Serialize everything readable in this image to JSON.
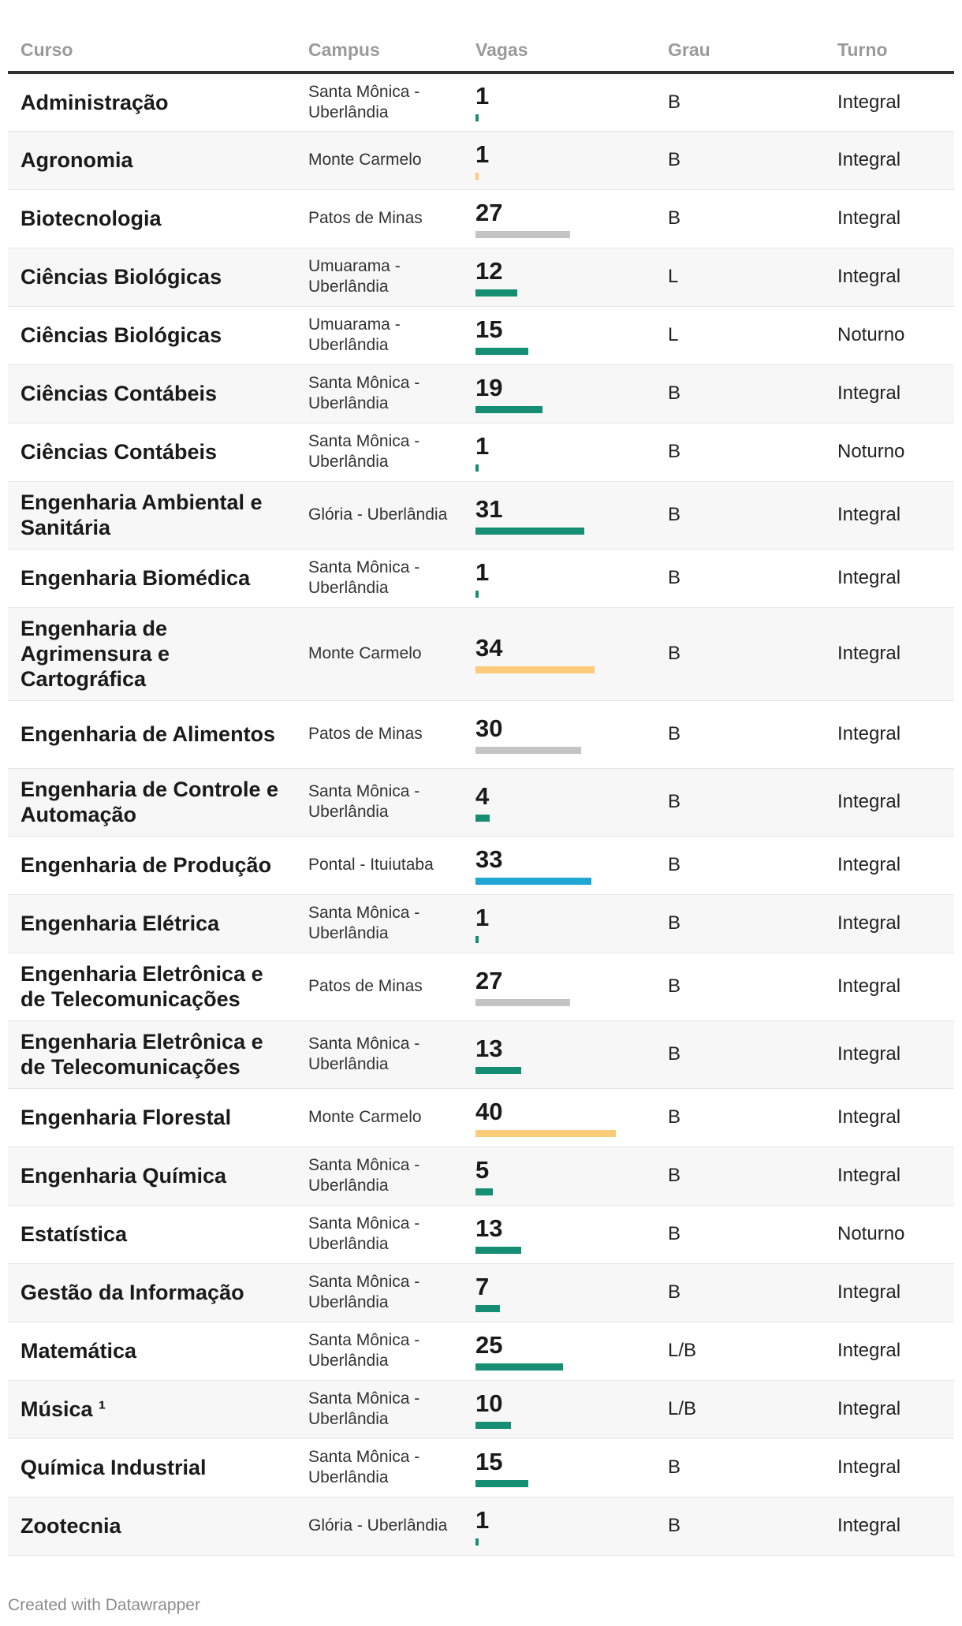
{
  "chart_data": {
    "type": "table",
    "columns": [
      "Curso",
      "Campus",
      "Vagas",
      "Grau",
      "Turno"
    ],
    "bar_max": 40,
    "colors": {
      "green": "#168e73",
      "yellow": "#fbcb7a",
      "gray": "#c4c4c4",
      "blue": "#1fa6d3"
    },
    "rows": [
      {
        "curso": "Administração",
        "campus": "Santa Mônica - Uberlândia",
        "vagas": 1,
        "grau": "B",
        "turno": "Integral",
        "color": "green"
      },
      {
        "curso": "Agronomia",
        "campus": "Monte Carmelo",
        "vagas": 1,
        "grau": "B",
        "turno": "Integral",
        "color": "yellow"
      },
      {
        "curso": "Biotecnologia",
        "campus": "Patos de Minas",
        "vagas": 27,
        "grau": "B",
        "turno": "Integral",
        "color": "gray"
      },
      {
        "curso": "Ciências Biológicas",
        "campus": "Umuarama - Uberlândia",
        "vagas": 12,
        "grau": "L",
        "turno": "Integral",
        "color": "green"
      },
      {
        "curso": "Ciências Biológicas",
        "campus": "Umuarama - Uberlândia",
        "vagas": 15,
        "grau": "L",
        "turno": "Noturno",
        "color": "green"
      },
      {
        "curso": "Ciências Contábeis",
        "campus": "Santa Mônica - Uberlândia",
        "vagas": 19,
        "grau": "B",
        "turno": "Integral",
        "color": "green"
      },
      {
        "curso": "Ciências Contábeis",
        "campus": "Santa Mônica - Uberlândia",
        "vagas": 1,
        "grau": "B",
        "turno": "Noturno",
        "color": "green"
      },
      {
        "curso": "Engenharia Ambiental e Sanitária",
        "campus": "Glória - Uberlândia",
        "vagas": 31,
        "grau": "B",
        "turno": "Integral",
        "color": "green"
      },
      {
        "curso": "Engenharia Biomédica",
        "campus": "Santa Mônica - Uberlândia",
        "vagas": 1,
        "grau": "B",
        "turno": "Integral",
        "color": "green"
      },
      {
        "curso": "Engenharia de Agrimensura e Cartográfica",
        "campus": "Monte Carmelo",
        "vagas": 34,
        "grau": "B",
        "turno": "Integral",
        "color": "yellow"
      },
      {
        "curso": "Engenharia de Alimentos",
        "campus": "Patos de Minas",
        "vagas": 30,
        "grau": "B",
        "turno": "Integral",
        "color": "gray"
      },
      {
        "curso": "Engenharia de Controle e Automação",
        "campus": "Santa Mônica - Uberlândia",
        "vagas": 4,
        "grau": "B",
        "turno": "Integral",
        "color": "green"
      },
      {
        "curso": "Engenharia de Produção",
        "campus": "Pontal - Ituiutaba",
        "vagas": 33,
        "grau": "B",
        "turno": "Integral",
        "color": "blue"
      },
      {
        "curso": "Engenharia Elétrica",
        "campus": "Santa Mônica - Uberlândia",
        "vagas": 1,
        "grau": "B",
        "turno": "Integral",
        "color": "green"
      },
      {
        "curso": "Engenharia Eletrônica e de Telecomunicações",
        "campus": "Patos de Minas",
        "vagas": 27,
        "grau": "B",
        "turno": "Integral",
        "color": "gray"
      },
      {
        "curso": "Engenharia Eletrônica e de Telecomunicações",
        "campus": "Santa Mônica - Uberlândia",
        "vagas": 13,
        "grau": "B",
        "turno": "Integral",
        "color": "green"
      },
      {
        "curso": "Engenharia Florestal",
        "campus": "Monte Carmelo",
        "vagas": 40,
        "grau": "B",
        "turno": "Integral",
        "color": "yellow"
      },
      {
        "curso": "Engenharia Química",
        "campus": "Santa Mônica - Uberlândia",
        "vagas": 5,
        "grau": "B",
        "turno": "Integral",
        "color": "green"
      },
      {
        "curso": "Estatística",
        "campus": "Santa Mônica - Uberlândia",
        "vagas": 13,
        "grau": "B",
        "turno": "Noturno",
        "color": "green"
      },
      {
        "curso": "Gestão da Informação",
        "campus": "Santa Mônica - Uberlândia",
        "vagas": 7,
        "grau": "B",
        "turno": "Integral",
        "color": "green"
      },
      {
        "curso": "Matemática",
        "campus": "Santa Mônica - Uberlândia",
        "vagas": 25,
        "grau": "L/B",
        "turno": "Integral",
        "color": "green"
      },
      {
        "curso": "Música ¹",
        "campus": "Santa Mônica - Uberlândia",
        "vagas": 10,
        "grau": "L/B",
        "turno": "Integral",
        "color": "green"
      },
      {
        "curso": "Química Industrial",
        "campus": "Santa Mônica - Uberlândia",
        "vagas": 15,
        "grau": "B",
        "turno": "Integral",
        "color": "green"
      },
      {
        "curso": "Zootecnia",
        "campus": "Glória - Uberlândia",
        "vagas": 1,
        "grau": "B",
        "turno": "Integral",
        "color": "green"
      }
    ]
  },
  "footer": {
    "credit": "Created with Datawrapper"
  }
}
